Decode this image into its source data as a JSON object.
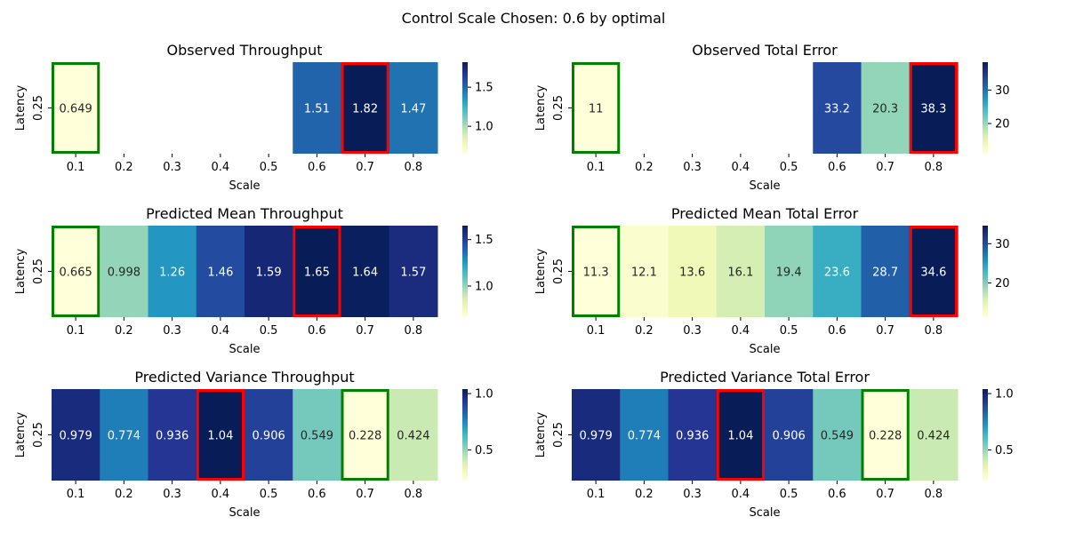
{
  "suptitle": "Control Scale Chosen: 0.6 by optimal",
  "chart_data": [
    {
      "type": "heatmap",
      "title": "Observed Throughput",
      "xlabel": "Scale",
      "ylabel": "Latency",
      "x": [
        "0.1",
        "0.2",
        "0.3",
        "0.4",
        "0.5",
        "0.6",
        "0.7",
        "0.8"
      ],
      "y": [
        "0.25"
      ],
      "values": [
        [
          0.649,
          null,
          null,
          null,
          null,
          1.51,
          1.82,
          1.47
        ]
      ],
      "labels": [
        "0.649",
        "",
        "",
        "",
        "",
        "1.51",
        "1.82",
        "1.47"
      ],
      "vmin": 0.649,
      "vmax": 1.82,
      "colorbar_ticks": [
        1.0,
        1.5
      ],
      "colorbar_ticklabels": [
        "1.0",
        "1.5"
      ],
      "colormap": "YlGnBu",
      "min_highlight": "0.1",
      "max_highlight": "0.7",
      "min_color": "#008000",
      "max_color": "#ff0000"
    },
    {
      "type": "heatmap",
      "title": "Observed Total Error",
      "xlabel": "Scale",
      "ylabel": "Latency",
      "x": [
        "0.1",
        "0.2",
        "0.3",
        "0.4",
        "0.5",
        "0.6",
        "0.7",
        "0.8"
      ],
      "y": [
        "0.25"
      ],
      "values": [
        [
          11,
          null,
          null,
          null,
          null,
          33.2,
          20.3,
          38.3
        ]
      ],
      "labels": [
        "11",
        "",
        "",
        "",
        "",
        "33.2",
        "20.3",
        "38.3"
      ],
      "vmin": 11,
      "vmax": 38.3,
      "colorbar_ticks": [
        20,
        30
      ],
      "colorbar_ticklabels": [
        "20",
        "30"
      ],
      "colormap": "YlGnBu",
      "min_highlight": "0.1",
      "max_highlight": "0.8",
      "min_color": "#008000",
      "max_color": "#ff0000"
    },
    {
      "type": "heatmap",
      "title": "Predicted Mean Throughput",
      "xlabel": "Scale",
      "ylabel": "Latency",
      "x": [
        "0.1",
        "0.2",
        "0.3",
        "0.4",
        "0.5",
        "0.6",
        "0.7",
        "0.8"
      ],
      "y": [
        "0.25"
      ],
      "values": [
        [
          0.665,
          0.998,
          1.26,
          1.46,
          1.59,
          1.65,
          1.64,
          1.57
        ]
      ],
      "labels": [
        "0.665",
        "0.998",
        "1.26",
        "1.46",
        "1.59",
        "1.65",
        "1.64",
        "1.57"
      ],
      "vmin": 0.665,
      "vmax": 1.65,
      "colorbar_ticks": [
        1.0,
        1.5
      ],
      "colorbar_ticklabels": [
        "1.0",
        "1.5"
      ],
      "colormap": "YlGnBu",
      "min_highlight": "0.1",
      "max_highlight": "0.6",
      "min_color": "#008000",
      "max_color": "#ff0000"
    },
    {
      "type": "heatmap",
      "title": "Predicted Mean Total Error",
      "xlabel": "Scale",
      "ylabel": "Latency",
      "x": [
        "0.1",
        "0.2",
        "0.3",
        "0.4",
        "0.5",
        "0.6",
        "0.7",
        "0.8"
      ],
      "y": [
        "0.25"
      ],
      "values": [
        [
          11.3,
          12.1,
          13.6,
          16.1,
          19.4,
          23.6,
          28.7,
          34.6
        ]
      ],
      "labels": [
        "11.3",
        "12.1",
        "13.6",
        "16.1",
        "19.4",
        "23.6",
        "28.7",
        "34.6"
      ],
      "vmin": 11.3,
      "vmax": 34.6,
      "colorbar_ticks": [
        20,
        30
      ],
      "colorbar_ticklabels": [
        "20",
        "30"
      ],
      "colormap": "YlGnBu",
      "min_highlight": "0.1",
      "max_highlight": "0.8",
      "min_color": "#008000",
      "max_color": "#ff0000"
    },
    {
      "type": "heatmap",
      "title": "Predicted Variance Throughput",
      "xlabel": "Scale",
      "ylabel": "Latency",
      "x": [
        "0.1",
        "0.2",
        "0.3",
        "0.4",
        "0.5",
        "0.6",
        "0.7",
        "0.8"
      ],
      "y": [
        "0.25"
      ],
      "values": [
        [
          0.979,
          0.774,
          0.936,
          1.04,
          0.906,
          0.549,
          0.228,
          0.424
        ]
      ],
      "labels": [
        "0.979",
        "0.774",
        "0.936",
        "1.04",
        "0.906",
        "0.549",
        "0.228",
        "0.424"
      ],
      "vmin": 0.228,
      "vmax": 1.04,
      "colorbar_ticks": [
        0.5,
        1.0
      ],
      "colorbar_ticklabels": [
        "0.5",
        "1.0"
      ],
      "colormap": "YlGnBu",
      "min_highlight": "0.7",
      "max_highlight": "0.4",
      "min_color": "#008000",
      "max_color": "#ff0000"
    },
    {
      "type": "heatmap",
      "title": "Predicted Variance Total Error",
      "xlabel": "Scale",
      "ylabel": "Latency",
      "x": [
        "0.1",
        "0.2",
        "0.3",
        "0.4",
        "0.5",
        "0.6",
        "0.7",
        "0.8"
      ],
      "y": [
        "0.25"
      ],
      "values": [
        [
          0.979,
          0.774,
          0.936,
          1.04,
          0.906,
          0.549,
          0.228,
          0.424
        ]
      ],
      "labels": [
        "0.979",
        "0.774",
        "0.936",
        "1.04",
        "0.906",
        "0.549",
        "0.228",
        "0.424"
      ],
      "vmin": 0.228,
      "vmax": 1.04,
      "colorbar_ticks": [
        0.5,
        1.0
      ],
      "colorbar_ticklabels": [
        "0.5",
        "1.0"
      ],
      "colormap": "YlGnBu",
      "min_highlight": "0.7",
      "max_highlight": "0.4",
      "min_color": "#008000",
      "max_color": "#ff0000"
    }
  ]
}
